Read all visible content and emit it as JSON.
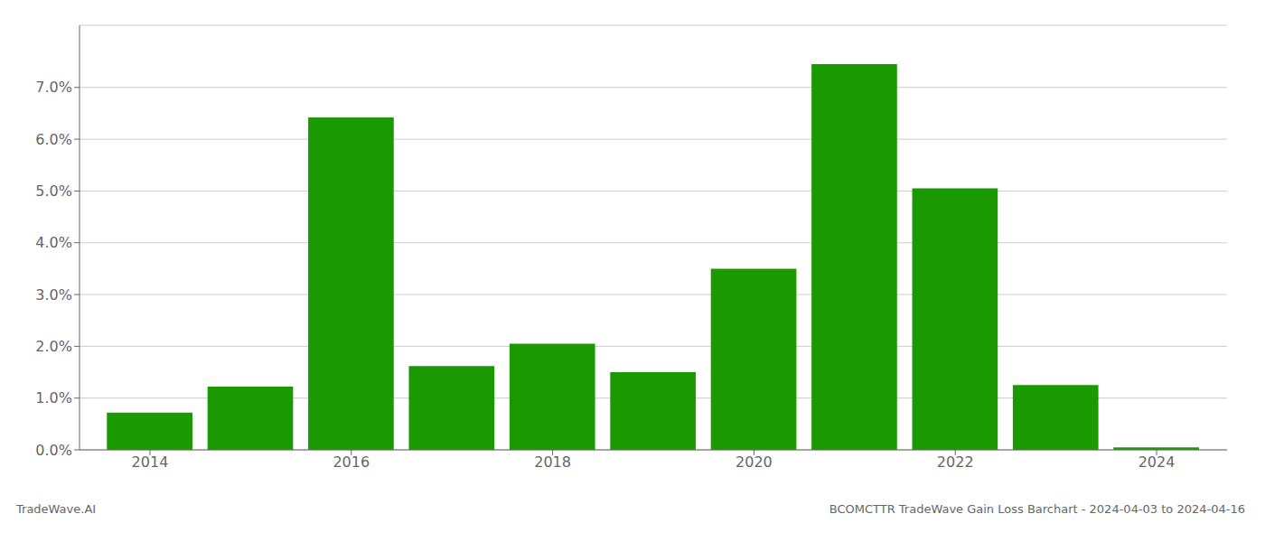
{
  "chart_data": {
    "type": "bar",
    "x": [
      2014,
      2015,
      2016,
      2017,
      2018,
      2019,
      2020,
      2021,
      2022,
      2023,
      2024
    ],
    "values": [
      0.0072,
      0.0122,
      0.0642,
      0.0162,
      0.0205,
      0.015,
      0.035,
      0.0745,
      0.0505,
      0.0125,
      0.0005
    ],
    "color": "#1a9a00",
    "xlim": [
      2013.3,
      2024.7
    ],
    "xticks": [
      2014,
      2016,
      2018,
      2020,
      2022,
      2024
    ],
    "ylim": [
      0,
      0.082
    ],
    "yticks": [
      {
        "value": 0.0,
        "label": "0.0%"
      },
      {
        "value": 0.01,
        "label": "1.0%"
      },
      {
        "value": 0.02,
        "label": "2.0%"
      },
      {
        "value": 0.03,
        "label": "3.0%"
      },
      {
        "value": 0.04,
        "label": "4.0%"
      },
      {
        "value": 0.05,
        "label": "5.0%"
      },
      {
        "value": 0.06,
        "label": "6.0%"
      },
      {
        "value": 0.07,
        "label": "7.0%"
      }
    ],
    "grid": true,
    "annotations": [
      "TradeWave.AI",
      "BCOMCTTR TradeWave Gain Loss Barchart - 2024-04-03 to 2024-04-16"
    ]
  }
}
